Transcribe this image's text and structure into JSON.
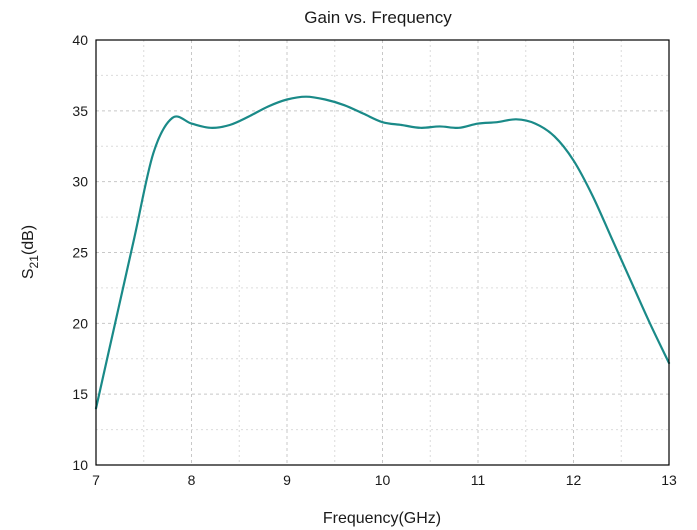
{
  "chart_data": {
    "type": "line",
    "title": "Gain vs. Frequency",
    "xlabel": "Frequency(GHz)",
    "ylabel_main": "S",
    "ylabel_sub": "21",
    "ylabel_tail": "(dB)",
    "xlim": [
      7,
      13
    ],
    "ylim": [
      10,
      40
    ],
    "x_ticks": [
      7,
      8,
      9,
      10,
      11,
      12,
      13
    ],
    "y_ticks": [
      10,
      15,
      20,
      25,
      30,
      35,
      40
    ],
    "x_tick_labels": [
      "7",
      "8",
      "9",
      "10",
      "11",
      "12",
      "13"
    ],
    "y_tick_labels": [
      "10",
      "15",
      "20",
      "25",
      "30",
      "35",
      "40"
    ],
    "grid": true,
    "series": [
      {
        "color": "#1a8a88",
        "x": [
          7.0,
          7.2,
          7.4,
          7.6,
          7.8,
          8.0,
          8.2,
          8.4,
          8.6,
          8.8,
          9.0,
          9.2,
          9.4,
          9.6,
          9.8,
          10.0,
          10.2,
          10.4,
          10.6,
          10.8,
          11.0,
          11.2,
          11.4,
          11.6,
          11.8,
          12.0,
          12.2,
          12.4,
          12.6,
          12.8,
          13.0
        ],
        "y": [
          14.0,
          20.0,
          26.0,
          32.0,
          34.5,
          34.1,
          33.8,
          34.0,
          34.6,
          35.3,
          35.8,
          36.0,
          35.8,
          35.4,
          34.8,
          34.2,
          34.0,
          33.8,
          33.9,
          33.8,
          34.1,
          34.2,
          34.4,
          34.1,
          33.2,
          31.5,
          29.0,
          26.0,
          23.0,
          20.0,
          17.2
        ]
      }
    ]
  }
}
